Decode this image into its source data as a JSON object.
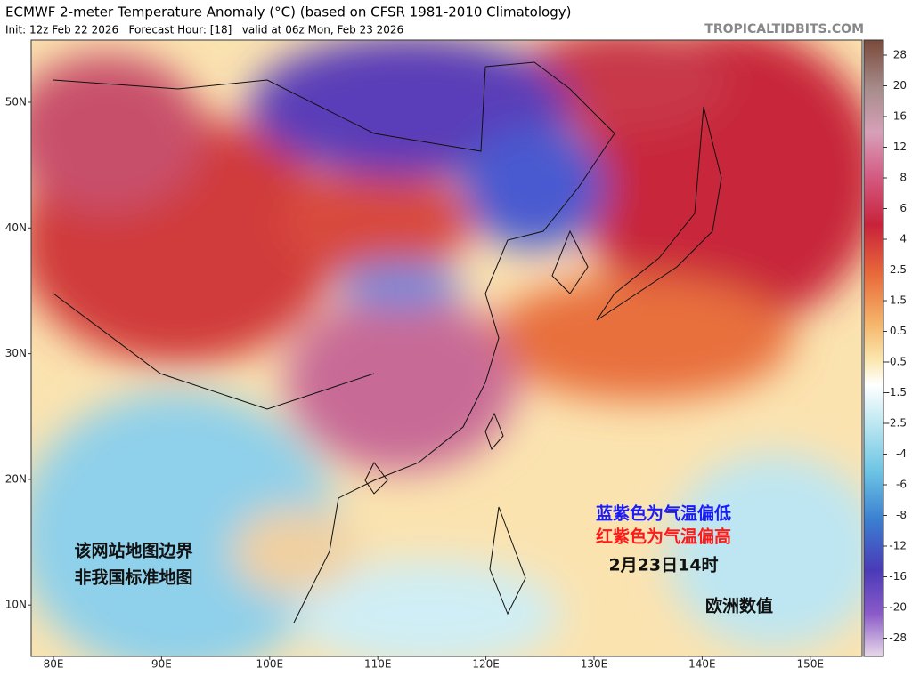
{
  "header": {
    "title": "ECMWF 2-meter Temperature Anomaly (°C) (based on CFSR 1981-2010 Climatology)",
    "subtitle": "Init: 12z Feb 22 2026   Forecast Hour: [18]   valid at 06z Mon, Feb 23 2026",
    "site": "TROPICALTIDBITS.COM"
  },
  "map": {
    "lat_labels": [
      "50N",
      "40N",
      "30N",
      "20N",
      "10N"
    ],
    "lon_labels": [
      "80E",
      "90E",
      "100E",
      "110E",
      "120E",
      "130E",
      "140E",
      "150E"
    ]
  },
  "colorbar": {
    "labels": [
      "28",
      "20",
      "16",
      "12",
      "8",
      "6",
      "4",
      "2.5",
      "1.5",
      "0.5",
      "-0.5",
      "-1.5",
      "-2.5",
      "-4",
      "-6",
      "-8",
      "-12",
      "-16",
      "-20",
      "-28"
    ]
  },
  "annotations": {
    "cold": "蓝紫色为气温偏低",
    "warm": "红紫色为气温偏高",
    "time": "2月23日14时",
    "model": "欧洲数值",
    "disclaimer_1": "该网站地图边界",
    "disclaimer_2": "非我国标准地图"
  }
}
